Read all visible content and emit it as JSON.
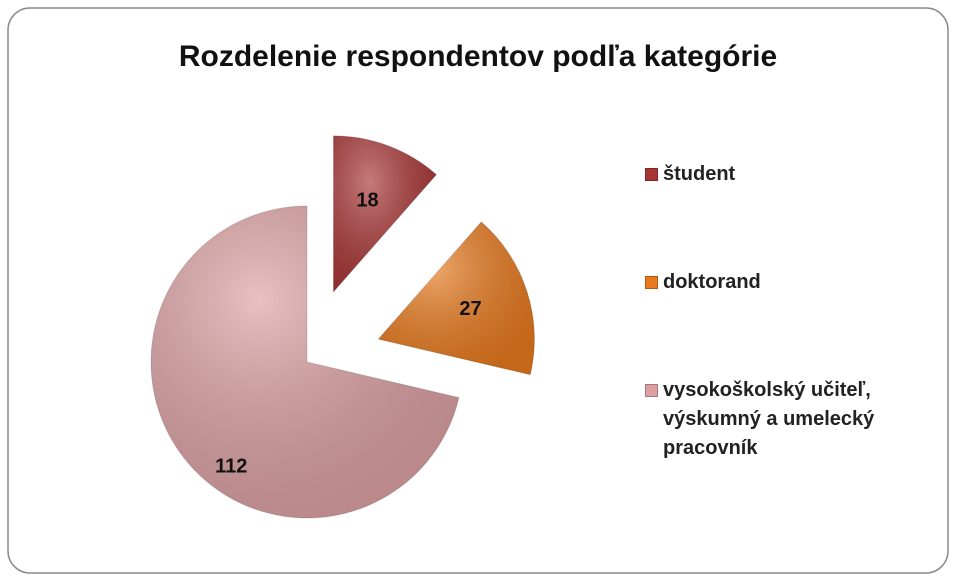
{
  "chart_data": {
    "type": "pie",
    "title": "Rozdelenie respondentov podľa kategórie",
    "categories": [
      "študent",
      "doktorand",
      "vysokoškolský učiteľ, výskumný a umelecký pracovník"
    ],
    "values": [
      18,
      27,
      112
    ],
    "colors": [
      "#a93434",
      "#e8791c",
      "#dca0a2"
    ],
    "legend": "right"
  }
}
